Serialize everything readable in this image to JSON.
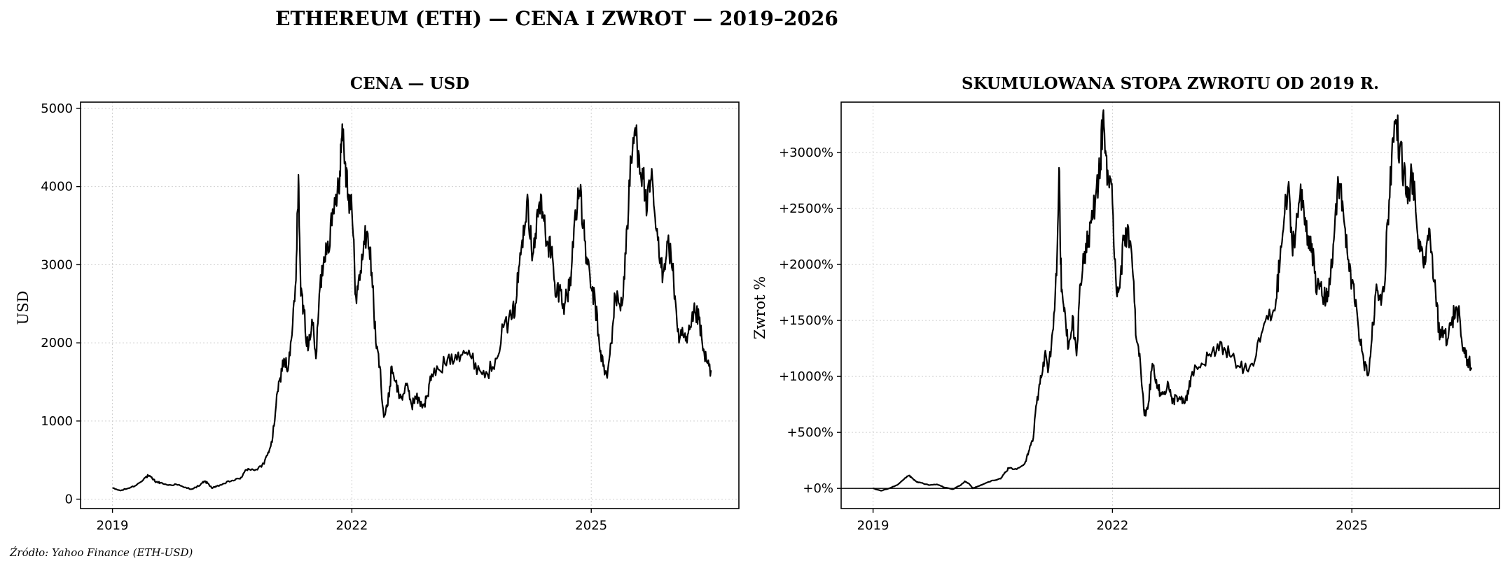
{
  "figure": {
    "title": "ETHEREUM (ETH) — CENA I ZWROT — 2019–2026",
    "source": "Źródło: Yahoo Finance (ETH-USD)"
  },
  "chart_data": [
    {
      "type": "line",
      "title": "CENA — USD",
      "xlabel": "",
      "ylabel": "USD",
      "xlim": [
        2018.6,
        2026.85
      ],
      "ylim": [
        -120,
        5080
      ],
      "xticks": [
        2019,
        2022,
        2025
      ],
      "xtick_labels": [
        "2019",
        "2022",
        "2025"
      ],
      "yticks": [
        0,
        1000,
        2000,
        3000,
        4000,
        5000
      ],
      "ytick_labels": [
        "0",
        "1000",
        "2000",
        "3000",
        "4000",
        "5000"
      ],
      "grid": true,
      "legend": "none",
      "series": [
        {
          "x": [
            2019.0,
            2019.1,
            2019.2,
            2019.3,
            2019.4,
            2019.45,
            2019.5,
            2019.55,
            2019.6,
            2019.7,
            2019.8,
            2019.9,
            2020.0,
            2020.1,
            2020.15,
            2020.2,
            2020.25,
            2020.3,
            2020.4,
            2020.5,
            2020.6,
            2020.65,
            2020.7,
            2020.8,
            2020.9,
            2020.95,
            2021.0,
            2021.05,
            2021.1,
            2021.15,
            2021.2,
            2021.25,
            2021.3,
            2021.33,
            2021.36,
            2021.4,
            2021.45,
            2021.5,
            2021.55,
            2021.6,
            2021.65,
            2021.7,
            2021.75,
            2021.8,
            2021.85,
            2021.88,
            2021.92,
            2021.96,
            2022.0,
            2022.05,
            2022.1,
            2022.15,
            2022.2,
            2022.25,
            2022.3,
            2022.35,
            2022.4,
            2022.45,
            2022.5,
            2022.55,
            2022.6,
            2022.65,
            2022.7,
            2022.75,
            2022.8,
            2022.85,
            2022.9,
            2022.95,
            2023.0,
            2023.1,
            2023.2,
            2023.3,
            2023.4,
            2023.5,
            2023.6,
            2023.7,
            2023.8,
            2023.9,
            2024.0,
            2024.05,
            2024.1,
            2024.15,
            2024.2,
            2024.25,
            2024.3,
            2024.35,
            2024.4,
            2024.45,
            2024.5,
            2024.55,
            2024.6,
            2024.65,
            2024.7,
            2024.75,
            2024.8,
            2024.85,
            2024.9,
            2024.95,
            2025.0,
            2025.05,
            2025.1,
            2025.15,
            2025.2,
            2025.25,
            2025.3,
            2025.35,
            2025.4,
            2025.45,
            2025.5,
            2025.55,
            2025.6,
            2025.65,
            2025.7,
            2025.75,
            2025.8,
            2025.85,
            2025.9,
            2025.95,
            2026.0,
            2026.05,
            2026.1,
            2026.15,
            2026.2,
            2026.25,
            2026.3,
            2026.35,
            2026.4,
            2026.45,
            2026.5
          ],
          "y": [
            140,
            110,
            140,
            180,
            270,
            300,
            260,
            220,
            210,
            180,
            190,
            150,
            130,
            180,
            230,
            200,
            140,
            160,
            200,
            240,
            260,
            340,
            390,
            380,
            450,
            600,
            730,
            1200,
            1550,
            1800,
            1650,
            2100,
            2800,
            4150,
            2600,
            2400,
            1900,
            2300,
            1800,
            2700,
            3100,
            3300,
            3500,
            3900,
            4200,
            4800,
            4300,
            3900,
            3700,
            2600,
            2800,
            3300,
            3400,
            2900,
            2000,
            1700,
            1050,
            1200,
            1700,
            1500,
            1300,
            1350,
            1450,
            1200,
            1300,
            1250,
            1200,
            1320,
            1600,
            1650,
            1800,
            1850,
            1900,
            1800,
            1650,
            1600,
            1800,
            2200,
            2300,
            2500,
            3000,
            3500,
            3900,
            3200,
            3400,
            3800,
            3600,
            3300,
            3200,
            2600,
            2700,
            2500,
            2600,
            2900,
            3700,
            3950,
            3500,
            3000,
            2700,
            2500,
            2000,
            1700,
            1550,
            2000,
            2600,
            2500,
            2600,
            3500,
            4300,
            4750,
            4400,
            4100,
            3700,
            4100,
            3600,
            3100,
            2900,
            3300,
            3100,
            2600,
            2000,
            2100,
            2000,
            2200,
            2400,
            2300,
            1900,
            1750,
            1650
          ]
        }
      ]
    },
    {
      "type": "line",
      "title": "SKUMULOWANA STOPA ZWROTU OD 2019 R.",
      "xlabel": "",
      "ylabel": "Zwrot %",
      "xlim": [
        2018.6,
        2026.85
      ],
      "ylim": [
        -180,
        3450
      ],
      "xticks": [
        2019,
        2022,
        2025
      ],
      "xtick_labels": [
        "2019",
        "2022",
        "2025"
      ],
      "yticks": [
        0,
        500,
        1000,
        1500,
        2000,
        2500,
        3000
      ],
      "ytick_labels": [
        "+0%",
        "+500%",
        "+1000%",
        "+1500%",
        "+2000%",
        "+2500%",
        "+3000%"
      ],
      "reference_line": 0,
      "grid": true,
      "legend": "none",
      "series": [
        {
          "x": [
            2019.0,
            2019.1,
            2019.2,
            2019.3,
            2019.4,
            2019.45,
            2019.5,
            2019.55,
            2019.6,
            2019.7,
            2019.8,
            2019.9,
            2020.0,
            2020.1,
            2020.15,
            2020.2,
            2020.25,
            2020.3,
            2020.4,
            2020.5,
            2020.6,
            2020.65,
            2020.7,
            2020.8,
            2020.9,
            2020.95,
            2021.0,
            2021.05,
            2021.1,
            2021.15,
            2021.2,
            2021.25,
            2021.3,
            2021.33,
            2021.36,
            2021.4,
            2021.45,
            2021.5,
            2021.55,
            2021.6,
            2021.65,
            2021.7,
            2021.75,
            2021.8,
            2021.85,
            2021.88,
            2021.92,
            2021.96,
            2022.0,
            2022.05,
            2022.1,
            2022.15,
            2022.2,
            2022.25,
            2022.3,
            2022.35,
            2022.4,
            2022.45,
            2022.5,
            2022.55,
            2022.6,
            2022.65,
            2022.7,
            2022.75,
            2022.8,
            2022.85,
            2022.9,
            2022.95,
            2023.0,
            2023.1,
            2023.2,
            2023.3,
            2023.4,
            2023.5,
            2023.6,
            2023.7,
            2023.8,
            2023.9,
            2024.0,
            2024.05,
            2024.1,
            2024.15,
            2024.2,
            2024.25,
            2024.3,
            2024.35,
            2024.4,
            2024.45,
            2024.5,
            2024.55,
            2024.6,
            2024.65,
            2024.7,
            2024.75,
            2024.8,
            2024.85,
            2024.9,
            2024.95,
            2025.0,
            2025.05,
            2025.1,
            2025.15,
            2025.2,
            2025.25,
            2025.3,
            2025.35,
            2025.4,
            2025.45,
            2025.5,
            2025.55,
            2025.6,
            2025.65,
            2025.7,
            2025.75,
            2025.8,
            2025.85,
            2025.9,
            2025.95,
            2026.0,
            2026.05,
            2026.1,
            2026.15,
            2026.2,
            2026.25,
            2026.3,
            2026.35,
            2026.4,
            2026.45,
            2026.5
          ],
          "y": [
            0,
            -21,
            0,
            29,
            93,
            114,
            86,
            57,
            50,
            29,
            36,
            7,
            -7,
            29,
            64,
            43,
            0,
            14,
            43,
            71,
            86,
            143,
            179,
            171,
            221,
            329,
            421,
            757,
            1007,
            1186,
            1079,
            1400,
            1900,
            2864,
            1757,
            1614,
            1257,
            1543,
            1186,
            1829,
            2114,
            2257,
            2400,
            2686,
            2900,
            3329,
            2971,
            2686,
            2543,
            1757,
            1900,
            2257,
            2329,
            1971,
            1329,
            1114,
            650,
            757,
            1114,
            971,
            829,
            864,
            936,
            757,
            829,
            793,
            757,
            843,
            1043,
            1079,
            1186,
            1221,
            1257,
            1186,
            1079,
            1043,
            1186,
            1471,
            1543,
            1686,
            2043,
            2400,
            2686,
            2186,
            2329,
            2614,
            2471,
            2257,
            2186,
            1757,
            1829,
            1686,
            1757,
            1971,
            2543,
            2721,
            2400,
            2043,
            1829,
            1686,
            1329,
            1114,
            1007,
            1329,
            1757,
            1686,
            1757,
            2400,
            2971,
            3293,
            3043,
            2829,
            2543,
            2829,
            2471,
            2114,
            1971,
            2257,
            2114,
            1757,
            1329,
            1400,
            1329,
            1471,
            1614,
            1543,
            1257,
            1150,
            1079
          ]
        }
      ]
    }
  ]
}
